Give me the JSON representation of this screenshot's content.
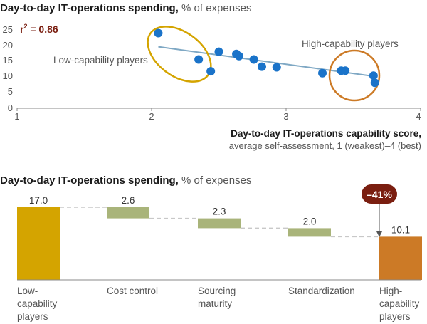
{
  "colors": {
    "point": "#1a73c9",
    "trendline": "#7fa8c4",
    "low_circle": "#d4a400",
    "high_circle": "#cc7a26",
    "r2_text": "#7a1e10",
    "waterfall_low": "#d4a400",
    "waterfall_step": "#a9b47a",
    "waterfall_high": "#cc7a26",
    "badge": "#7a1e10",
    "axis": "#888888",
    "dash": "#c8c8c8"
  },
  "chart_data": [
    {
      "type": "scatter",
      "title": "Day-to-day IT-operations spending,",
      "title_suffix": " % of expenses",
      "xlabel": "Day-to-day IT-operations capability score,",
      "xlabel_sub": "average self-assessment, 1 (weakest)–4 (best)",
      "xlim": [
        1,
        4
      ],
      "ylim": [
        0,
        25
      ],
      "x_ticks": [
        "1",
        "2",
        "3",
        "4"
      ],
      "y_ticks": [
        "0",
        "5",
        "10",
        "15",
        "20",
        "25"
      ],
      "r2_label": "r",
      "r2_sup": "2",
      "r2_value": " = 0.86",
      "trendline": {
        "x": [
          2.05,
          3.65
        ],
        "y": [
          19.8,
          10.3
        ]
      },
      "groups": [
        {
          "label": "Low-capability players"
        },
        {
          "label": "High-capability players"
        }
      ],
      "points": [
        {
          "x": 2.05,
          "y": 24.2
        },
        {
          "x": 2.35,
          "y": 15.7
        },
        {
          "x": 2.44,
          "y": 11.9
        },
        {
          "x": 2.5,
          "y": 18.2
        },
        {
          "x": 2.63,
          "y": 17.5
        },
        {
          "x": 2.65,
          "y": 16.8
        },
        {
          "x": 2.76,
          "y": 15.7
        },
        {
          "x": 2.82,
          "y": 13.4
        },
        {
          "x": 2.93,
          "y": 13.2
        },
        {
          "x": 3.27,
          "y": 11.3
        },
        {
          "x": 3.41,
          "y": 12.1
        },
        {
          "x": 3.44,
          "y": 12.1
        },
        {
          "x": 3.65,
          "y": 10.5
        },
        {
          "x": 3.66,
          "y": 8.2
        }
      ]
    },
    {
      "type": "bar",
      "subtype": "waterfall",
      "title": "Day-to-day IT-operations spending,",
      "title_suffix": " % of expenses",
      "categories": [
        [
          "Low-",
          "capability",
          "players"
        ],
        [
          "Cost control"
        ],
        [
          "Sourcing",
          "maturity"
        ],
        [
          "Standardization"
        ],
        [
          "High-",
          "capability",
          "players"
        ]
      ],
      "values": [
        17.0,
        -2.6,
        -2.3,
        -2.0,
        10.1
      ],
      "value_labels": [
        "17.0",
        "2.6",
        "2.3",
        "2.0",
        "10.1"
      ],
      "annotation": "–41%"
    }
  ]
}
